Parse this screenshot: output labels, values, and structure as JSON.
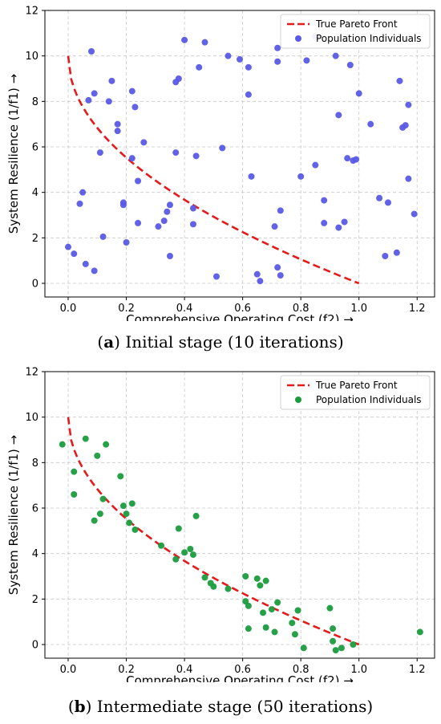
{
  "chart_data": [
    {
      "type": "scatter",
      "caption_letter": "a",
      "caption_text": "Initial stage (10 iterations)",
      "xlabel": "Comprehensive Operating Cost (f2) →",
      "ylabel": "System Resilience (1/f1) →",
      "xlim": [
        -0.08,
        1.26
      ],
      "ylim": [
        -0.6,
        12
      ],
      "xticks": [
        "0.0",
        "0.2",
        "0.4",
        "0.6",
        "0.8",
        "1.0",
        "1.2"
      ],
      "yticks": [
        "0",
        "2",
        "4",
        "6",
        "8",
        "10",
        "12"
      ],
      "grid": true,
      "legend_position": "top-right",
      "front": {
        "name": "True Pareto Front",
        "color": "#e41a1c",
        "style": "dashed"
      },
      "series": [
        {
          "name": "Population Individuals",
          "color": "#5a5ae6",
          "points": [
            [
              0.0,
              1.6
            ],
            [
              0.02,
              1.3
            ],
            [
              0.04,
              3.5
            ],
            [
              0.05,
              4.0
            ],
            [
              0.06,
              0.85
            ],
            [
              0.07,
              8.05
            ],
            [
              0.08,
              10.2
            ],
            [
              0.09,
              8.35
            ],
            [
              0.09,
              0.55
            ],
            [
              0.11,
              5.75
            ],
            [
              0.12,
              2.05
            ],
            [
              0.14,
              8.0
            ],
            [
              0.15,
              8.9
            ],
            [
              0.17,
              7.0
            ],
            [
              0.17,
              6.7
            ],
            [
              0.19,
              3.55
            ],
            [
              0.19,
              3.45
            ],
            [
              0.2,
              1.8
            ],
            [
              0.22,
              8.45
            ],
            [
              0.22,
              5.5
            ],
            [
              0.23,
              7.75
            ],
            [
              0.24,
              4.5
            ],
            [
              0.24,
              2.65
            ],
            [
              0.26,
              6.2
            ],
            [
              0.31,
              2.5
            ],
            [
              0.33,
              2.75
            ],
            [
              0.34,
              3.15
            ],
            [
              0.35,
              1.2
            ],
            [
              0.35,
              3.45
            ],
            [
              0.37,
              8.85
            ],
            [
              0.37,
              5.75
            ],
            [
              0.38,
              9.0
            ],
            [
              0.4,
              10.7
            ],
            [
              0.43,
              2.6
            ],
            [
              0.43,
              3.3
            ],
            [
              0.44,
              5.6
            ],
            [
              0.45,
              9.5
            ],
            [
              0.47,
              10.6
            ],
            [
              0.51,
              0.3
            ],
            [
              0.53,
              5.95
            ],
            [
              0.55,
              10.0
            ],
            [
              0.59,
              9.85
            ],
            [
              0.62,
              8.3
            ],
            [
              0.62,
              9.5
            ],
            [
              0.63,
              4.7
            ],
            [
              0.65,
              0.4
            ],
            [
              0.66,
              0.1
            ],
            [
              0.71,
              2.5
            ],
            [
              0.72,
              9.75
            ],
            [
              0.72,
              10.35
            ],
            [
              0.72,
              0.7
            ],
            [
              0.73,
              3.2
            ],
            [
              0.73,
              0.35
            ],
            [
              0.8,
              4.7
            ],
            [
              0.82,
              9.8
            ],
            [
              0.85,
              5.2
            ],
            [
              0.85,
              10.85
            ],
            [
              0.88,
              3.65
            ],
            [
              0.88,
              2.65
            ],
            [
              0.92,
              10.0
            ],
            [
              0.93,
              7.4
            ],
            [
              0.93,
              2.45
            ],
            [
              0.95,
              2.7
            ],
            [
              0.96,
              5.5
            ],
            [
              0.97,
              9.6
            ],
            [
              0.98,
              5.4
            ],
            [
              0.99,
              5.45
            ],
            [
              1.0,
              8.35
            ],
            [
              1.04,
              7.0
            ],
            [
              1.07,
              3.75
            ],
            [
              1.09,
              1.2
            ],
            [
              1.1,
              3.55
            ],
            [
              1.13,
              1.35
            ],
            [
              1.14,
              8.9
            ],
            [
              1.15,
              6.85
            ],
            [
              1.16,
              6.95
            ],
            [
              1.17,
              4.6
            ],
            [
              1.17,
              7.85
            ],
            [
              1.19,
              3.05
            ]
          ]
        }
      ]
    },
    {
      "type": "scatter",
      "caption_letter": "b",
      "caption_text": "Intermediate stage (50 iterations)",
      "xlabel": "Comprehensive Operating Cost (f2) →",
      "ylabel": "System Resilience (1/f1) →",
      "xlim": [
        -0.08,
        1.26
      ],
      "ylim": [
        -0.6,
        12
      ],
      "xticks": [
        "0.0",
        "0.2",
        "0.4",
        "0.6",
        "0.8",
        "1.0",
        "1.2"
      ],
      "yticks": [
        "0",
        "2",
        "4",
        "6",
        "8",
        "10",
        "12"
      ],
      "grid": true,
      "legend_position": "top-right",
      "front": {
        "name": "True Pareto Front",
        "color": "#e41a1c",
        "style": "dashed"
      },
      "series": [
        {
          "name": "Population Individuals",
          "color": "#1a9c3e",
          "points": [
            [
              -0.02,
              8.8
            ],
            [
              0.02,
              7.6
            ],
            [
              0.02,
              6.6
            ],
            [
              0.06,
              9.05
            ],
            [
              0.09,
              5.45
            ],
            [
              0.1,
              8.3
            ],
            [
              0.11,
              5.75
            ],
            [
              0.12,
              6.4
            ],
            [
              0.13,
              8.8
            ],
            [
              0.18,
              7.4
            ],
            [
              0.19,
              6.1
            ],
            [
              0.2,
              5.75
            ],
            [
              0.21,
              5.35
            ],
            [
              0.22,
              6.2
            ],
            [
              0.23,
              5.05
            ],
            [
              0.32,
              4.35
            ],
            [
              0.37,
              3.75
            ],
            [
              0.38,
              5.1
            ],
            [
              0.4,
              4.05
            ],
            [
              0.42,
              4.2
            ],
            [
              0.43,
              3.95
            ],
            [
              0.44,
              5.65
            ],
            [
              0.47,
              2.95
            ],
            [
              0.49,
              2.7
            ],
            [
              0.5,
              2.55
            ],
            [
              0.55,
              2.45
            ],
            [
              0.61,
              1.9
            ],
            [
              0.61,
              3.0
            ],
            [
              0.62,
              1.7
            ],
            [
              0.62,
              0.7
            ],
            [
              0.65,
              2.9
            ],
            [
              0.66,
              2.6
            ],
            [
              0.67,
              1.4
            ],
            [
              0.68,
              2.8
            ],
            [
              0.68,
              0.75
            ],
            [
              0.7,
              1.55
            ],
            [
              0.71,
              0.55
            ],
            [
              0.72,
              1.85
            ],
            [
              0.77,
              0.95
            ],
            [
              0.78,
              0.45
            ],
            [
              0.79,
              1.5
            ],
            [
              0.81,
              -0.15
            ],
            [
              0.9,
              1.6
            ],
            [
              0.91,
              0.7
            ],
            [
              0.91,
              0.15
            ],
            [
              0.92,
              -0.25
            ],
            [
              0.94,
              -0.15
            ],
            [
              0.98,
              0.0
            ],
            [
              1.21,
              0.55
            ]
          ]
        }
      ]
    }
  ]
}
